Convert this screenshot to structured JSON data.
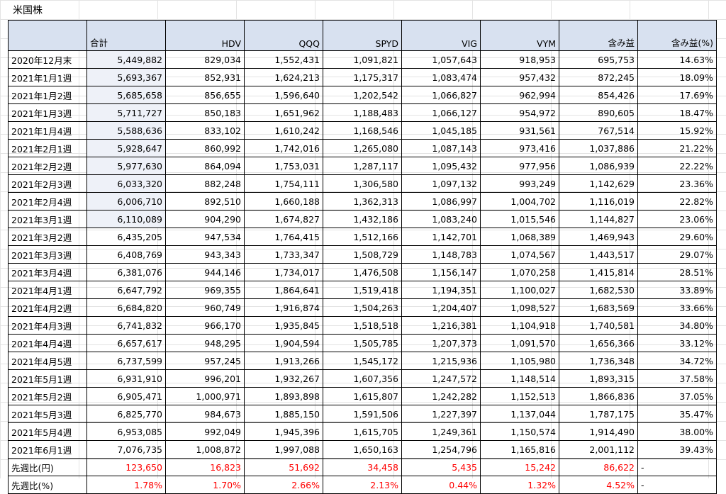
{
  "sheet": {
    "title": "米国株"
  },
  "columns": [
    "",
    "合計",
    "HDV",
    "QQQ",
    "SPYD",
    "VIG",
    "VYM",
    "含み益",
    "含み益(%)"
  ],
  "rows": [
    [
      "2020年12月末",
      "5,449,882",
      "829,034",
      "1,552,431",
      "1,091,821",
      "1,057,643",
      "918,953",
      "695,753",
      "14.63%"
    ],
    [
      "2021年1月1週",
      "5,693,367",
      "852,931",
      "1,624,213",
      "1,175,317",
      "1,083,474",
      "957,432",
      "872,245",
      "18.09%"
    ],
    [
      "2021年1月2週",
      "5,685,658",
      "856,655",
      "1,596,640",
      "1,202,542",
      "1,066,827",
      "962,994",
      "854,426",
      "17.69%"
    ],
    [
      "2021年1月3週",
      "5,711,727",
      "850,183",
      "1,651,962",
      "1,188,483",
      "1,066,127",
      "954,972",
      "890,605",
      "18.47%"
    ],
    [
      "2021年1月4週",
      "5,588,636",
      "833,102",
      "1,610,242",
      "1,168,546",
      "1,045,185",
      "931,561",
      "767,514",
      "15.92%"
    ],
    [
      "2021年2月1週",
      "5,928,647",
      "860,992",
      "1,742,016",
      "1,265,080",
      "1,087,143",
      "973,416",
      "1,037,886",
      "21.22%"
    ],
    [
      "2021年2月2週",
      "5,977,630",
      "864,094",
      "1,753,031",
      "1,287,117",
      "1,095,432",
      "977,956",
      "1,086,939",
      "22.22%"
    ],
    [
      "2021年2月3週",
      "6,033,320",
      "882,248",
      "1,754,111",
      "1,306,580",
      "1,097,132",
      "993,249",
      "1,142,629",
      "23.36%"
    ],
    [
      "2021年2月4週",
      "6,006,710",
      "892,510",
      "1,660,188",
      "1,362,313",
      "1,086,997",
      "1,004,702",
      "1,116,019",
      "22.82%"
    ],
    [
      "2021年3月1週",
      "6,110,089",
      "904,290",
      "1,674,827",
      "1,432,186",
      "1,083,240",
      "1,015,546",
      "1,144,827",
      "23.06%"
    ],
    [
      "2021年3月2週",
      "6,435,205",
      "947,534",
      "1,764,415",
      "1,512,166",
      "1,142,701",
      "1,068,389",
      "1,469,943",
      "29.60%"
    ],
    [
      "2021年3月3週",
      "6,408,769",
      "943,343",
      "1,733,347",
      "1,508,729",
      "1,148,783",
      "1,074,567",
      "1,443,517",
      "29.07%"
    ],
    [
      "2021年3月4週",
      "6,381,076",
      "944,146",
      "1,734,017",
      "1,476,508",
      "1,156,147",
      "1,070,258",
      "1,415,814",
      "28.51%"
    ],
    [
      "2021年4月1週",
      "6,647,792",
      "969,355",
      "1,864,641",
      "1,519,418",
      "1,194,351",
      "1,100,027",
      "1,682,530",
      "33.89%"
    ],
    [
      "2021年4月2週",
      "6,684,820",
      "960,749",
      "1,916,874",
      "1,504,263",
      "1,204,407",
      "1,098,527",
      "1,683,569",
      "33.66%"
    ],
    [
      "2021年4月3週",
      "6,741,832",
      "966,170",
      "1,935,845",
      "1,518,518",
      "1,216,381",
      "1,104,918",
      "1,740,581",
      "34.80%"
    ],
    [
      "2021年4月4週",
      "6,657,617",
      "948,295",
      "1,904,594",
      "1,505,785",
      "1,207,373",
      "1,091,570",
      "1,656,366",
      "33.12%"
    ],
    [
      "2021年4月5週",
      "6,737,599",
      "957,245",
      "1,913,266",
      "1,545,172",
      "1,215,936",
      "1,105,980",
      "1,736,348",
      "34.72%"
    ],
    [
      "2021年5月1週",
      "6,931,910",
      "996,201",
      "1,932,267",
      "1,607,356",
      "1,247,572",
      "1,148,514",
      "1,893,315",
      "37.58%"
    ],
    [
      "2021年5月2週",
      "6,905,471",
      "1,000,971",
      "1,893,898",
      "1,615,807",
      "1,242,282",
      "1,152,513",
      "1,866,836",
      "37.05%"
    ],
    [
      "2021年5月3週",
      "6,825,770",
      "984,673",
      "1,885,150",
      "1,591,506",
      "1,227,397",
      "1,137,044",
      "1,787,175",
      "35.47%"
    ],
    [
      "2021年5月4週",
      "6,953,085",
      "992,049",
      "1,945,396",
      "1,615,705",
      "1,249,361",
      "1,150,574",
      "1,914,490",
      "38.00%"
    ],
    [
      "2021年6月1週",
      "7,076,735",
      "1,008,872",
      "1,997,088",
      "1,650,163",
      "1,254,796",
      "1,165,816",
      "2,001,112",
      "39.43%"
    ]
  ],
  "summary_rows": [
    [
      "先週比(円)",
      "123,650",
      "16,823",
      "51,692",
      "34,458",
      "5,435",
      "15,242",
      "86,622",
      "-"
    ],
    [
      "先週比(%)",
      "1.78%",
      "1.70%",
      "2.66%",
      "2.13%",
      "0.44%",
      "1.32%",
      "4.52%",
      "-"
    ]
  ],
  "colors": {
    "header_bg": "#d8e1f0",
    "total_tint_bg": "#eef1f8",
    "summary_text": "#ff0000",
    "border": "#000000"
  }
}
